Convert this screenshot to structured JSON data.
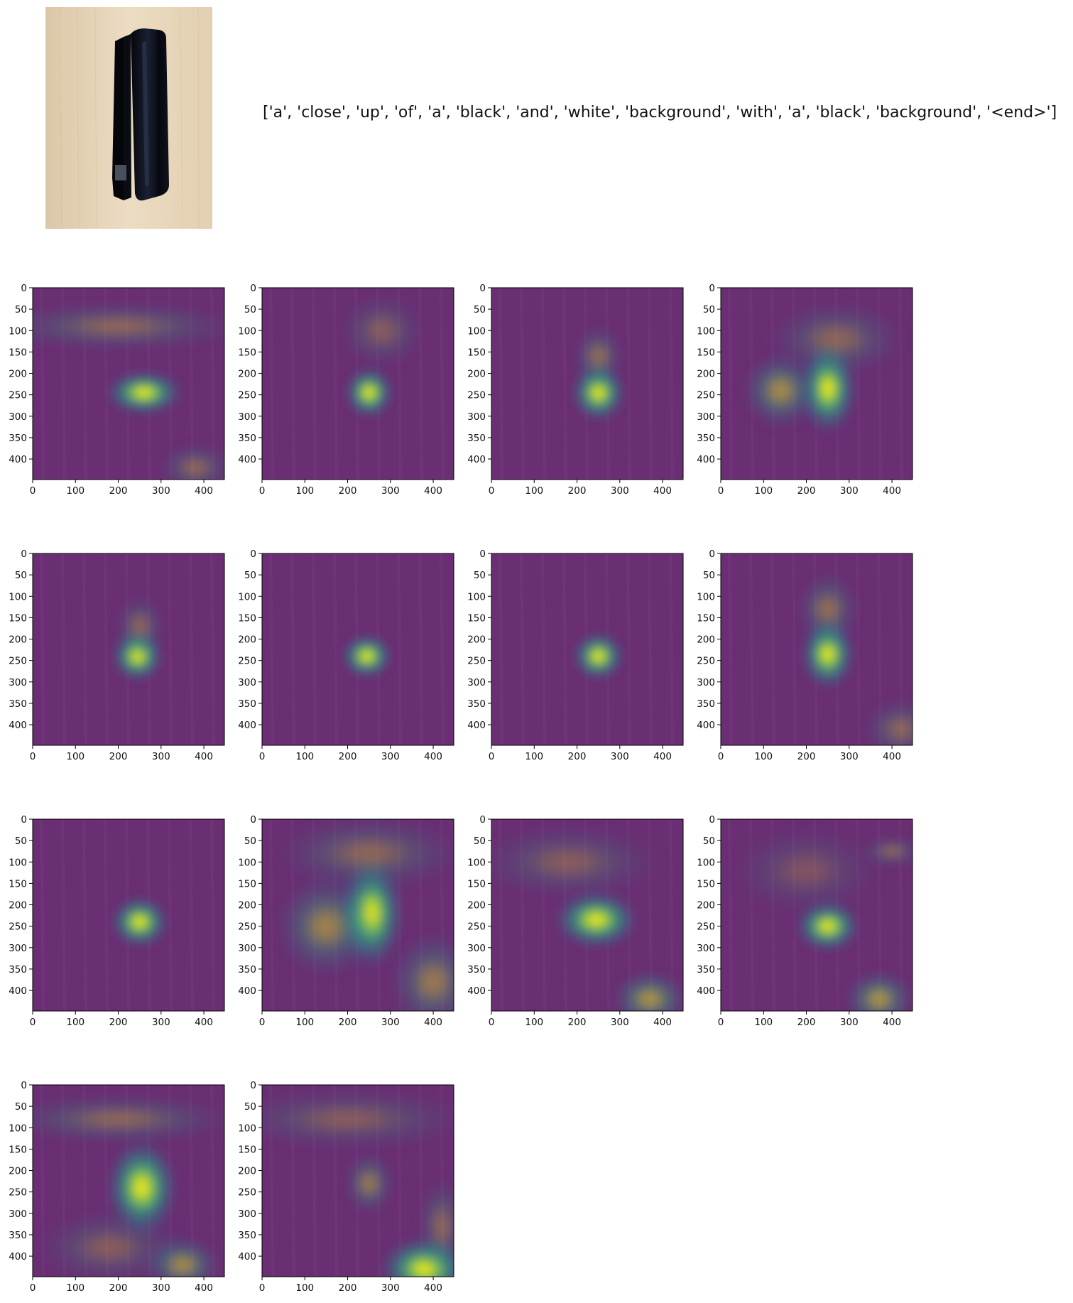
{
  "caption": "['a', 'close', 'up', 'of', 'a', 'black', 'and', 'white', 'background', 'with', 'a', 'black', 'background', '<end>']",
  "photo": {
    "subject": "black stapler standing upright on light wood surface",
    "icon": "stapler-photo"
  },
  "colors": {
    "viridis_dark": "#440154",
    "viridis_teal": "#21918c",
    "viridis_yellow": "#fde725",
    "overlay_base": "#6a2e72",
    "wood": "#e8d6bb",
    "stapler": "#0c0e16"
  },
  "chart_data": {
    "type": "heatmap",
    "panel_count": 14,
    "columns": 4,
    "x_ticks": [
      "0",
      "100",
      "200",
      "300",
      "400"
    ],
    "y_ticks": [
      "0",
      "50",
      "100",
      "150",
      "200",
      "250",
      "300",
      "350",
      "400"
    ],
    "xlim": [
      0,
      448
    ],
    "ylim": [
      448,
      0
    ],
    "colormap": "viridis",
    "panels": [
      {
        "blobs": [
          {
            "x": 260,
            "y": 245,
            "rx": 60,
            "ry": 35,
            "a": 1.0
          },
          {
            "x": 200,
            "y": 90,
            "rx": 200,
            "ry": 40,
            "a": 0.3
          },
          {
            "x": 380,
            "y": 420,
            "rx": 60,
            "ry": 40,
            "a": 0.3
          }
        ]
      },
      {
        "blobs": [
          {
            "x": 250,
            "y": 245,
            "rx": 38,
            "ry": 40,
            "a": 1.0
          },
          {
            "x": 280,
            "y": 100,
            "rx": 70,
            "ry": 60,
            "a": 0.25
          }
        ]
      },
      {
        "blobs": [
          {
            "x": 250,
            "y": 245,
            "rx": 42,
            "ry": 45,
            "a": 1.0
          },
          {
            "x": 250,
            "y": 160,
            "rx": 40,
            "ry": 50,
            "a": 0.35
          }
        ]
      },
      {
        "blobs": [
          {
            "x": 250,
            "y": 235,
            "rx": 45,
            "ry": 70,
            "a": 1.0
          },
          {
            "x": 140,
            "y": 240,
            "rx": 60,
            "ry": 60,
            "a": 0.5
          },
          {
            "x": 270,
            "y": 120,
            "rx": 110,
            "ry": 60,
            "a": 0.3
          }
        ]
      },
      {
        "blobs": [
          {
            "x": 245,
            "y": 240,
            "rx": 40,
            "ry": 40,
            "a": 1.0
          },
          {
            "x": 250,
            "y": 170,
            "rx": 40,
            "ry": 50,
            "a": 0.3
          }
        ]
      },
      {
        "blobs": [
          {
            "x": 245,
            "y": 240,
            "rx": 40,
            "ry": 35,
            "a": 1.0
          }
        ]
      },
      {
        "blobs": [
          {
            "x": 250,
            "y": 240,
            "rx": 40,
            "ry": 38,
            "a": 1.0
          }
        ]
      },
      {
        "blobs": [
          {
            "x": 250,
            "y": 235,
            "rx": 42,
            "ry": 55,
            "a": 1.0
          },
          {
            "x": 250,
            "y": 130,
            "rx": 50,
            "ry": 60,
            "a": 0.35
          },
          {
            "x": 420,
            "y": 410,
            "rx": 60,
            "ry": 50,
            "a": 0.3
          }
        ]
      },
      {
        "blobs": [
          {
            "x": 250,
            "y": 240,
            "rx": 45,
            "ry": 40,
            "a": 1.0
          }
        ]
      },
      {
        "blobs": [
          {
            "x": 255,
            "y": 220,
            "rx": 50,
            "ry": 85,
            "a": 1.0
          },
          {
            "x": 150,
            "y": 250,
            "rx": 80,
            "ry": 80,
            "a": 0.45
          },
          {
            "x": 400,
            "y": 380,
            "rx": 70,
            "ry": 80,
            "a": 0.4
          },
          {
            "x": 250,
            "y": 80,
            "rx": 150,
            "ry": 60,
            "a": 0.3
          }
        ]
      },
      {
        "blobs": [
          {
            "x": 245,
            "y": 235,
            "rx": 65,
            "ry": 45,
            "a": 1.0
          },
          {
            "x": 370,
            "y": 420,
            "rx": 60,
            "ry": 45,
            "a": 0.55
          },
          {
            "x": 180,
            "y": 100,
            "rx": 150,
            "ry": 60,
            "a": 0.25
          }
        ]
      },
      {
        "blobs": [
          {
            "x": 250,
            "y": 250,
            "rx": 50,
            "ry": 40,
            "a": 1.0
          },
          {
            "x": 370,
            "y": 420,
            "rx": 55,
            "ry": 45,
            "a": 0.55
          },
          {
            "x": 400,
            "y": 75,
            "rx": 50,
            "ry": 25,
            "a": 0.3
          },
          {
            "x": 200,
            "y": 120,
            "rx": 120,
            "ry": 70,
            "a": 0.2
          }
        ]
      },
      {
        "blobs": [
          {
            "x": 255,
            "y": 240,
            "rx": 55,
            "ry": 75,
            "a": 1.0
          },
          {
            "x": 350,
            "y": 420,
            "rx": 60,
            "ry": 45,
            "a": 0.5
          },
          {
            "x": 200,
            "y": 80,
            "rx": 190,
            "ry": 40,
            "a": 0.3
          },
          {
            "x": 180,
            "y": 380,
            "rx": 120,
            "ry": 60,
            "a": 0.25
          }
        ]
      },
      {
        "blobs": [
          {
            "x": 380,
            "y": 430,
            "rx": 70,
            "ry": 50,
            "a": 1.0
          },
          {
            "x": 250,
            "y": 230,
            "rx": 40,
            "ry": 50,
            "a": 0.4
          },
          {
            "x": 200,
            "y": 80,
            "rx": 200,
            "ry": 50,
            "a": 0.25
          },
          {
            "x": 420,
            "y": 330,
            "rx": 40,
            "ry": 80,
            "a": 0.3
          }
        ]
      }
    ]
  }
}
